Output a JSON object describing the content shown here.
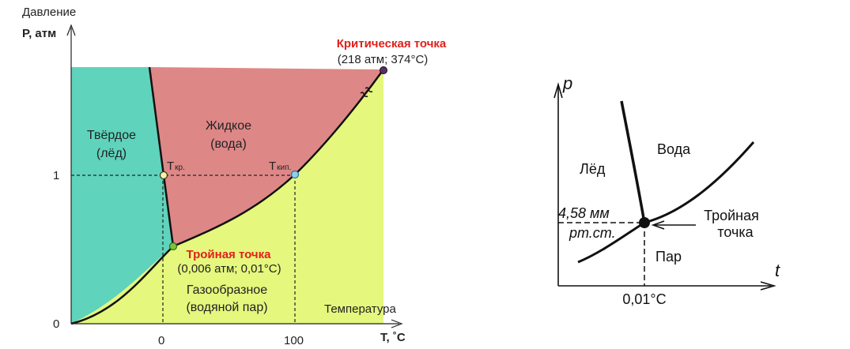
{
  "left": {
    "y_title": "Давление",
    "y_label": "P, атм",
    "x_label": "T, ˚C",
    "x_caption": "Температура",
    "y_ticks": [
      "1",
      "0"
    ],
    "x_ticks": [
      "0",
      "100"
    ],
    "regions": {
      "solid": [
        "Твёрдое",
        "(лёд)"
      ],
      "liquid": [
        "Жидкое",
        "(вода)"
      ],
      "gas": [
        "Газообразное",
        "(водяной пар)"
      ]
    },
    "points": {
      "critical_title": "Критическая точка",
      "critical_values": "(218 атм; 374°C)",
      "triple_title": "Тройная точка",
      "triple_values": "(0,006 атм; 0,01°C)",
      "t_melt_main": "T",
      "t_melt_sub": "кр.",
      "t_boil_main": "T",
      "t_boil_sub": "кип."
    },
    "colors": {
      "solid": "#5fd3bc",
      "liquid": "#de8787",
      "gas": "#e5f77d",
      "triple": "#7ec43c",
      "melt": "#f6f59a",
      "boil": "#8fd0ee",
      "critical": "#5a2d68"
    }
  },
  "right": {
    "y_label": "p",
    "x_label": "t",
    "ice": "Лёд",
    "water": "Вода",
    "vapor": "Пар",
    "triple_line1": "Тройная",
    "triple_line2": "точка",
    "pressure_line1": "4,58 мм",
    "pressure_line2": "рт.ст.",
    "temp": "0,01°С"
  }
}
